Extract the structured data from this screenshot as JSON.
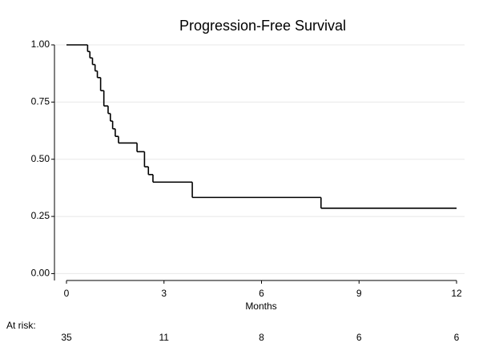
{
  "chart_data": {
    "type": "step",
    "title": "Progression-Free Survival",
    "x_label": "Months",
    "xlim": [
      0,
      12
    ],
    "ylim": [
      -0.03,
      1
    ],
    "xticks": [
      0,
      3,
      6,
      9,
      12
    ],
    "yticks": [
      {
        "value": 0,
        "label": "0.00"
      },
      {
        "value": 0.25,
        "label": "0.25"
      },
      {
        "value": 0.5,
        "label": "0.50"
      },
      {
        "value": 0.75,
        "label": "0.75"
      },
      {
        "value": 1,
        "label": "1.00"
      }
    ],
    "grid": true,
    "series": [
      {
        "color": "#000000",
        "x": [
          0,
          0.65,
          0.72,
          0.8,
          0.88,
          0.95,
          1.05,
          1.15,
          1.28,
          1.35,
          1.42,
          1.5,
          1.6,
          2.17,
          2.4,
          2.52,
          2.66,
          3.87,
          7.83,
          12
        ],
        "y": [
          1.0,
          0.971,
          0.943,
          0.914,
          0.886,
          0.857,
          0.8,
          0.733,
          0.7,
          0.667,
          0.633,
          0.6,
          0.571,
          0.533,
          0.467,
          0.433,
          0.4,
          0.333,
          0.286,
          0.286
        ]
      }
    ],
    "at_risk": {
      "label": "At risk:",
      "values": [
        35,
        11,
        8,
        6,
        6
      ]
    }
  }
}
